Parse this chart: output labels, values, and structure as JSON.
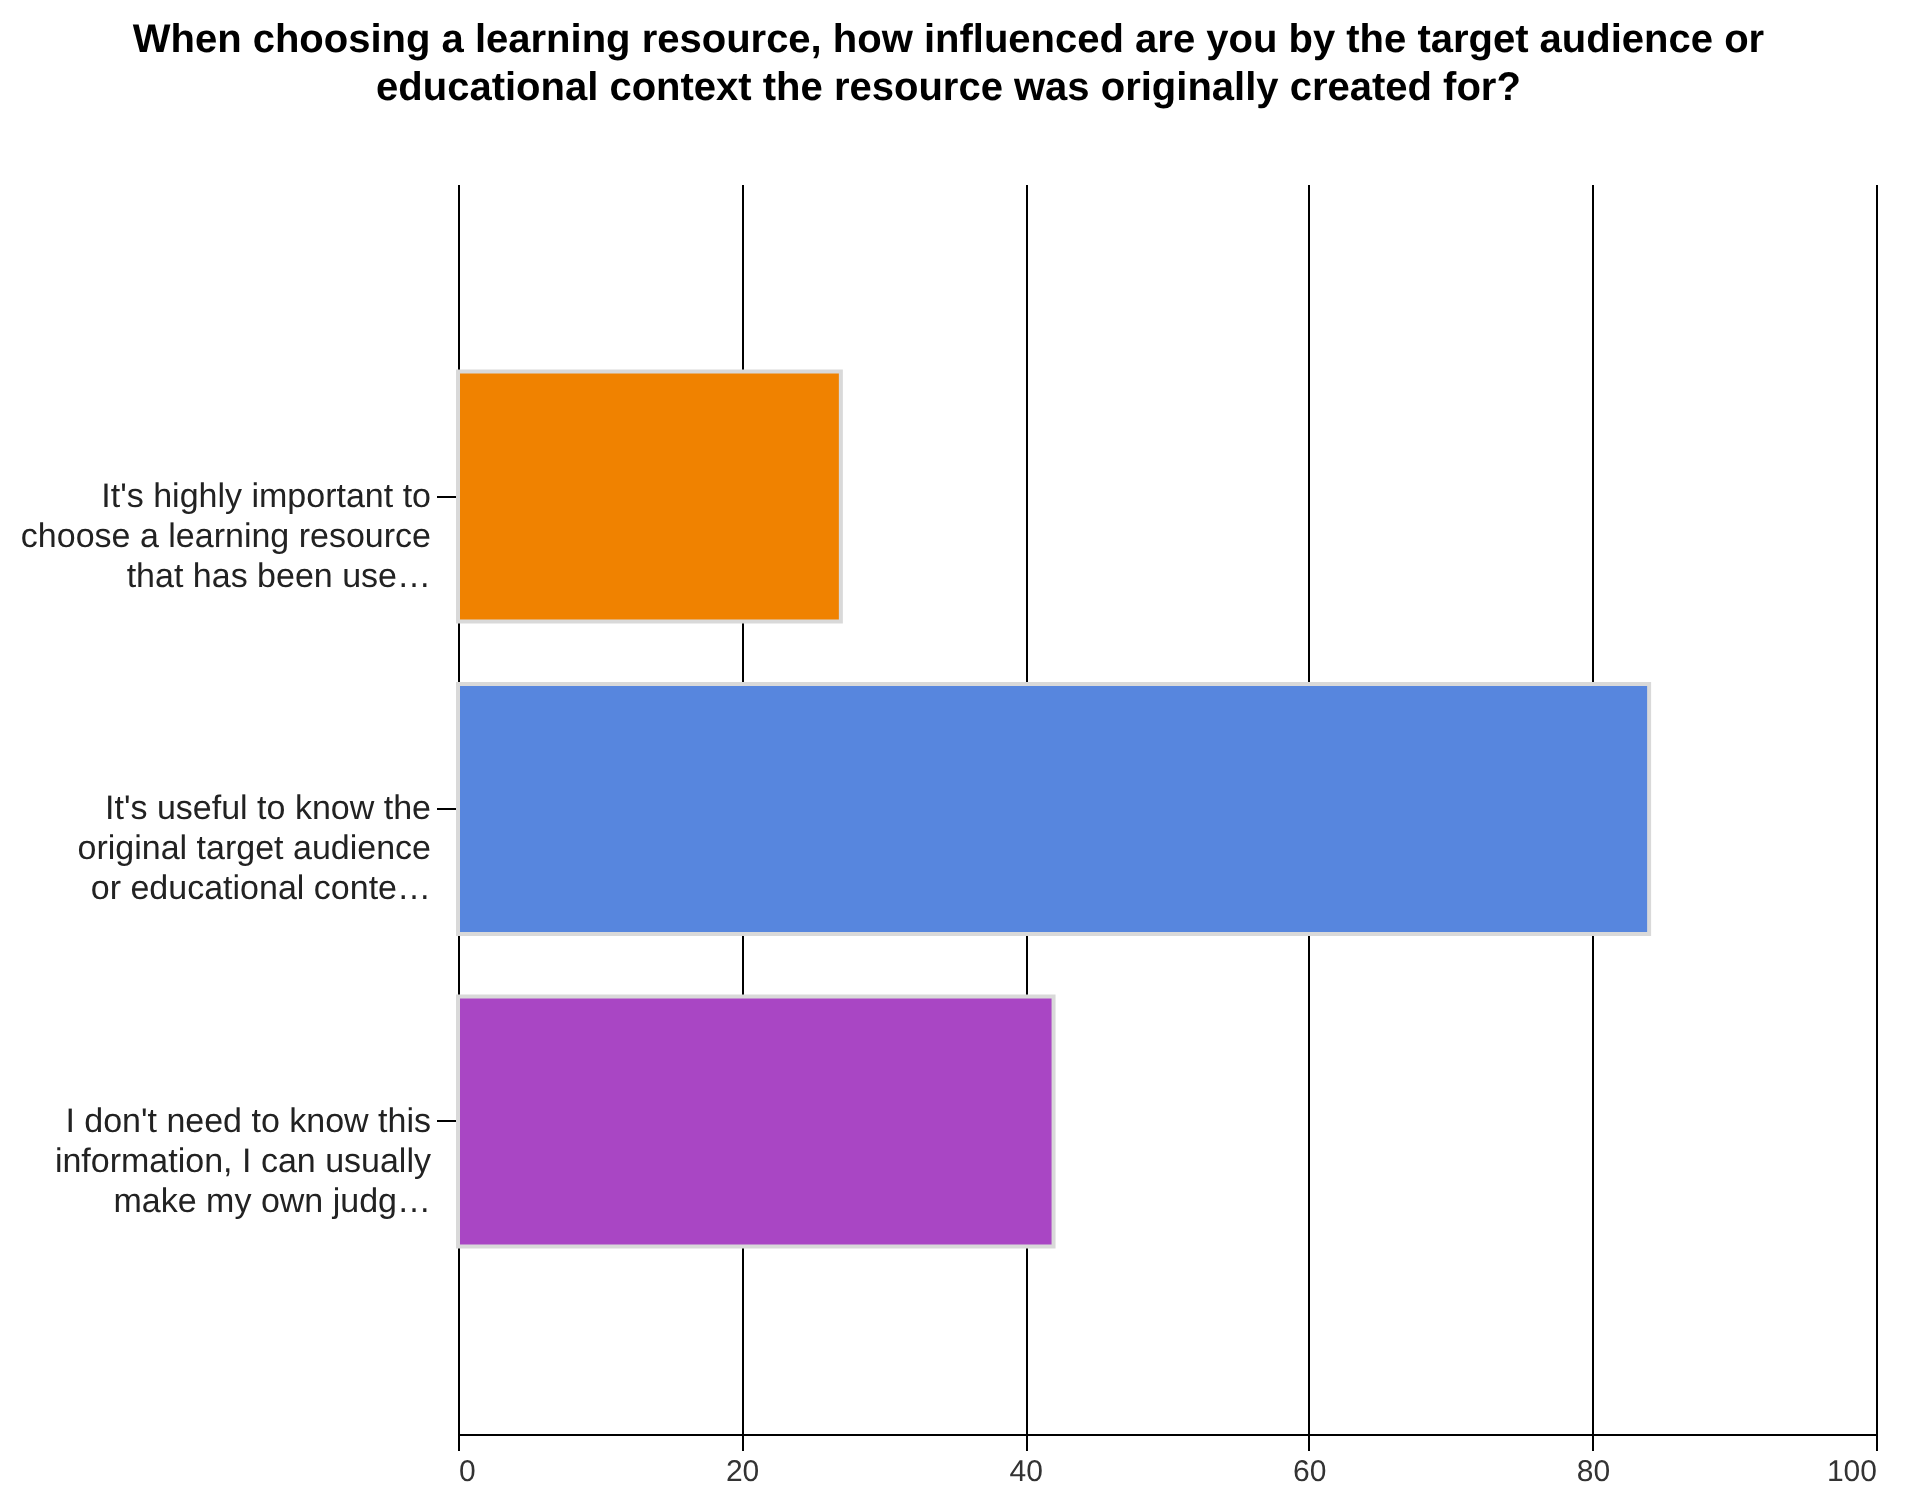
{
  "chart_data": {
    "type": "bar",
    "orientation": "horizontal",
    "title": "When choosing a learning resource, how influenced are you by the target audience or\neducational context the resource was originally created for?",
    "categories": [
      "It's highly important to\nchoose a learning resource\nthat has been use…",
      "It's useful to know the\noriginal target audience\nor educational conte…",
      "I don't need to know this\ninformation, I can usually\nmake my own judg…"
    ],
    "values": [
      27,
      84,
      42
    ],
    "colors": [
      "#f08200",
      "#5786de",
      "#a946c4"
    ],
    "xlim": [
      0,
      100
    ],
    "xticks": [
      0,
      20,
      40,
      60,
      80,
      100
    ],
    "grid": "x"
  }
}
